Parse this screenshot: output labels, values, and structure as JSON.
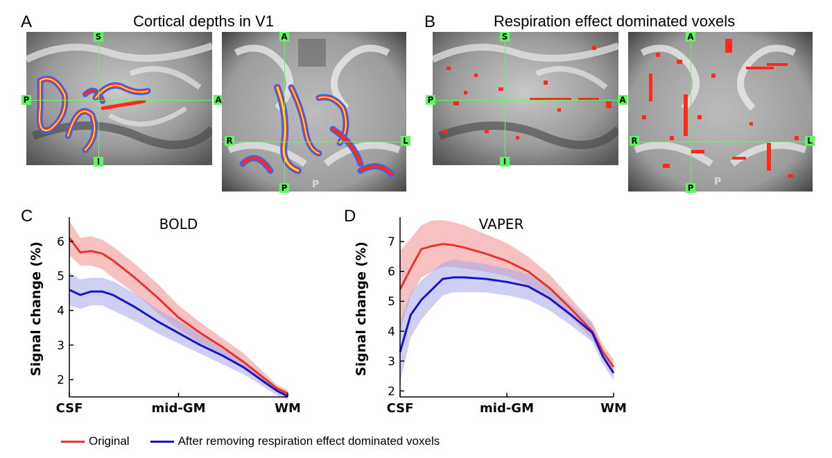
{
  "panels": {
    "A": {
      "letter": "A",
      "title": "Cortical depths in V1"
    },
    "B": {
      "letter": "B",
      "title": "Respiration effect dominated voxels"
    },
    "C": {
      "letter": "C"
    },
    "D": {
      "letter": "D"
    }
  },
  "crosshair_labels": {
    "sagittal": {
      "top": "S",
      "bottom": "I",
      "left": "P",
      "right": "A"
    },
    "axial": {
      "top": "A",
      "bottom": "P",
      "left": "R",
      "right": "L",
      "faint": "P"
    }
  },
  "colors": {
    "original": "#e8332a",
    "removed": "#1414c8",
    "original_band": "#f2a0a0",
    "removed_band": "#a8a8ea",
    "crosshair": "#59ff59",
    "overlay_red": "#ff2a1a",
    "overlay_yellow": "#ffe04a",
    "overlay_blue": "#2a6aff"
  },
  "legend": [
    {
      "label": "Original",
      "color": "#e8332a"
    },
    {
      "label": "After removing respiration effect dominated voxels",
      "color": "#1414c8"
    }
  ],
  "chart_data": [
    {
      "type": "line",
      "title": "BOLD",
      "ylabel": "Signal change (%)",
      "xlabel": "",
      "x_ticks": [
        "CSF",
        "mid-GM",
        "WM"
      ],
      "ylim": [
        1.5,
        6.6
      ],
      "yticks": [
        2,
        3,
        4,
        5,
        6
      ],
      "x": [
        0,
        0.05,
        0.1,
        0.15,
        0.2,
        0.3,
        0.4,
        0.5,
        0.6,
        0.7,
        0.8,
        0.9,
        0.95,
        1.0
      ],
      "series": [
        {
          "name": "Original",
          "values": [
            6.1,
            5.68,
            5.72,
            5.65,
            5.45,
            4.95,
            4.4,
            3.8,
            3.35,
            2.95,
            2.5,
            2.0,
            1.75,
            1.6
          ],
          "lower": [
            5.6,
            5.3,
            5.3,
            5.2,
            4.95,
            4.5,
            3.95,
            3.45,
            3.05,
            2.7,
            2.3,
            1.85,
            1.65,
            1.5
          ],
          "upper": [
            6.6,
            6.1,
            6.15,
            6.05,
            5.85,
            5.35,
            4.8,
            4.15,
            3.65,
            3.2,
            2.75,
            2.15,
            1.85,
            1.7
          ]
        },
        {
          "name": "After removing respiration effect dominated voxels",
          "values": [
            4.6,
            4.45,
            4.55,
            4.55,
            4.45,
            4.1,
            3.7,
            3.35,
            3.0,
            2.7,
            2.35,
            1.9,
            1.68,
            1.52
          ],
          "lower": [
            4.15,
            4.05,
            4.15,
            4.15,
            4.0,
            3.7,
            3.35,
            3.05,
            2.75,
            2.45,
            2.15,
            1.75,
            1.55,
            1.42
          ],
          "upper": [
            5.1,
            4.9,
            4.95,
            4.95,
            4.85,
            4.5,
            4.05,
            3.7,
            3.3,
            2.95,
            2.55,
            2.05,
            1.78,
            1.62
          ]
        }
      ]
    },
    {
      "type": "line",
      "title": "VAPER",
      "ylabel": "Signal change (%)",
      "xlabel": "",
      "x_ticks": [
        "CSF",
        "mid-GM",
        "WM"
      ],
      "ylim": [
        1.8,
        7.7
      ],
      "yticks": [
        2,
        3,
        4,
        5,
        6,
        7
      ],
      "x": [
        0,
        0.05,
        0.1,
        0.15,
        0.2,
        0.25,
        0.3,
        0.4,
        0.5,
        0.6,
        0.7,
        0.8,
        0.9,
        0.95,
        1.0
      ],
      "series": [
        {
          "name": "Original",
          "values": [
            5.4,
            6.1,
            6.75,
            6.85,
            6.92,
            6.88,
            6.8,
            6.6,
            6.35,
            6.0,
            5.45,
            4.75,
            4.0,
            3.3,
            2.8
          ],
          "lower": [
            4.0,
            5.2,
            5.8,
            6.0,
            6.15,
            6.15,
            6.1,
            6.0,
            5.85,
            5.55,
            5.05,
            4.45,
            3.75,
            3.1,
            2.6
          ],
          "upper": [
            6.7,
            7.1,
            7.55,
            7.7,
            7.72,
            7.65,
            7.55,
            7.25,
            6.95,
            6.5,
            5.9,
            5.1,
            4.3,
            3.55,
            3.05
          ]
        },
        {
          "name": "After removing respiration effect dominated voxels",
          "values": [
            3.3,
            4.55,
            5.05,
            5.4,
            5.75,
            5.8,
            5.8,
            5.75,
            5.65,
            5.5,
            5.1,
            4.55,
            3.95,
            3.15,
            2.6
          ],
          "lower": [
            2.3,
            3.8,
            4.4,
            4.8,
            5.2,
            5.3,
            5.3,
            5.3,
            5.2,
            5.05,
            4.7,
            4.2,
            3.65,
            2.9,
            2.35
          ],
          "upper": [
            4.3,
            5.3,
            5.7,
            6.0,
            6.3,
            6.4,
            6.35,
            6.25,
            6.1,
            5.9,
            5.5,
            4.9,
            4.25,
            3.4,
            2.85
          ]
        }
      ]
    }
  ]
}
